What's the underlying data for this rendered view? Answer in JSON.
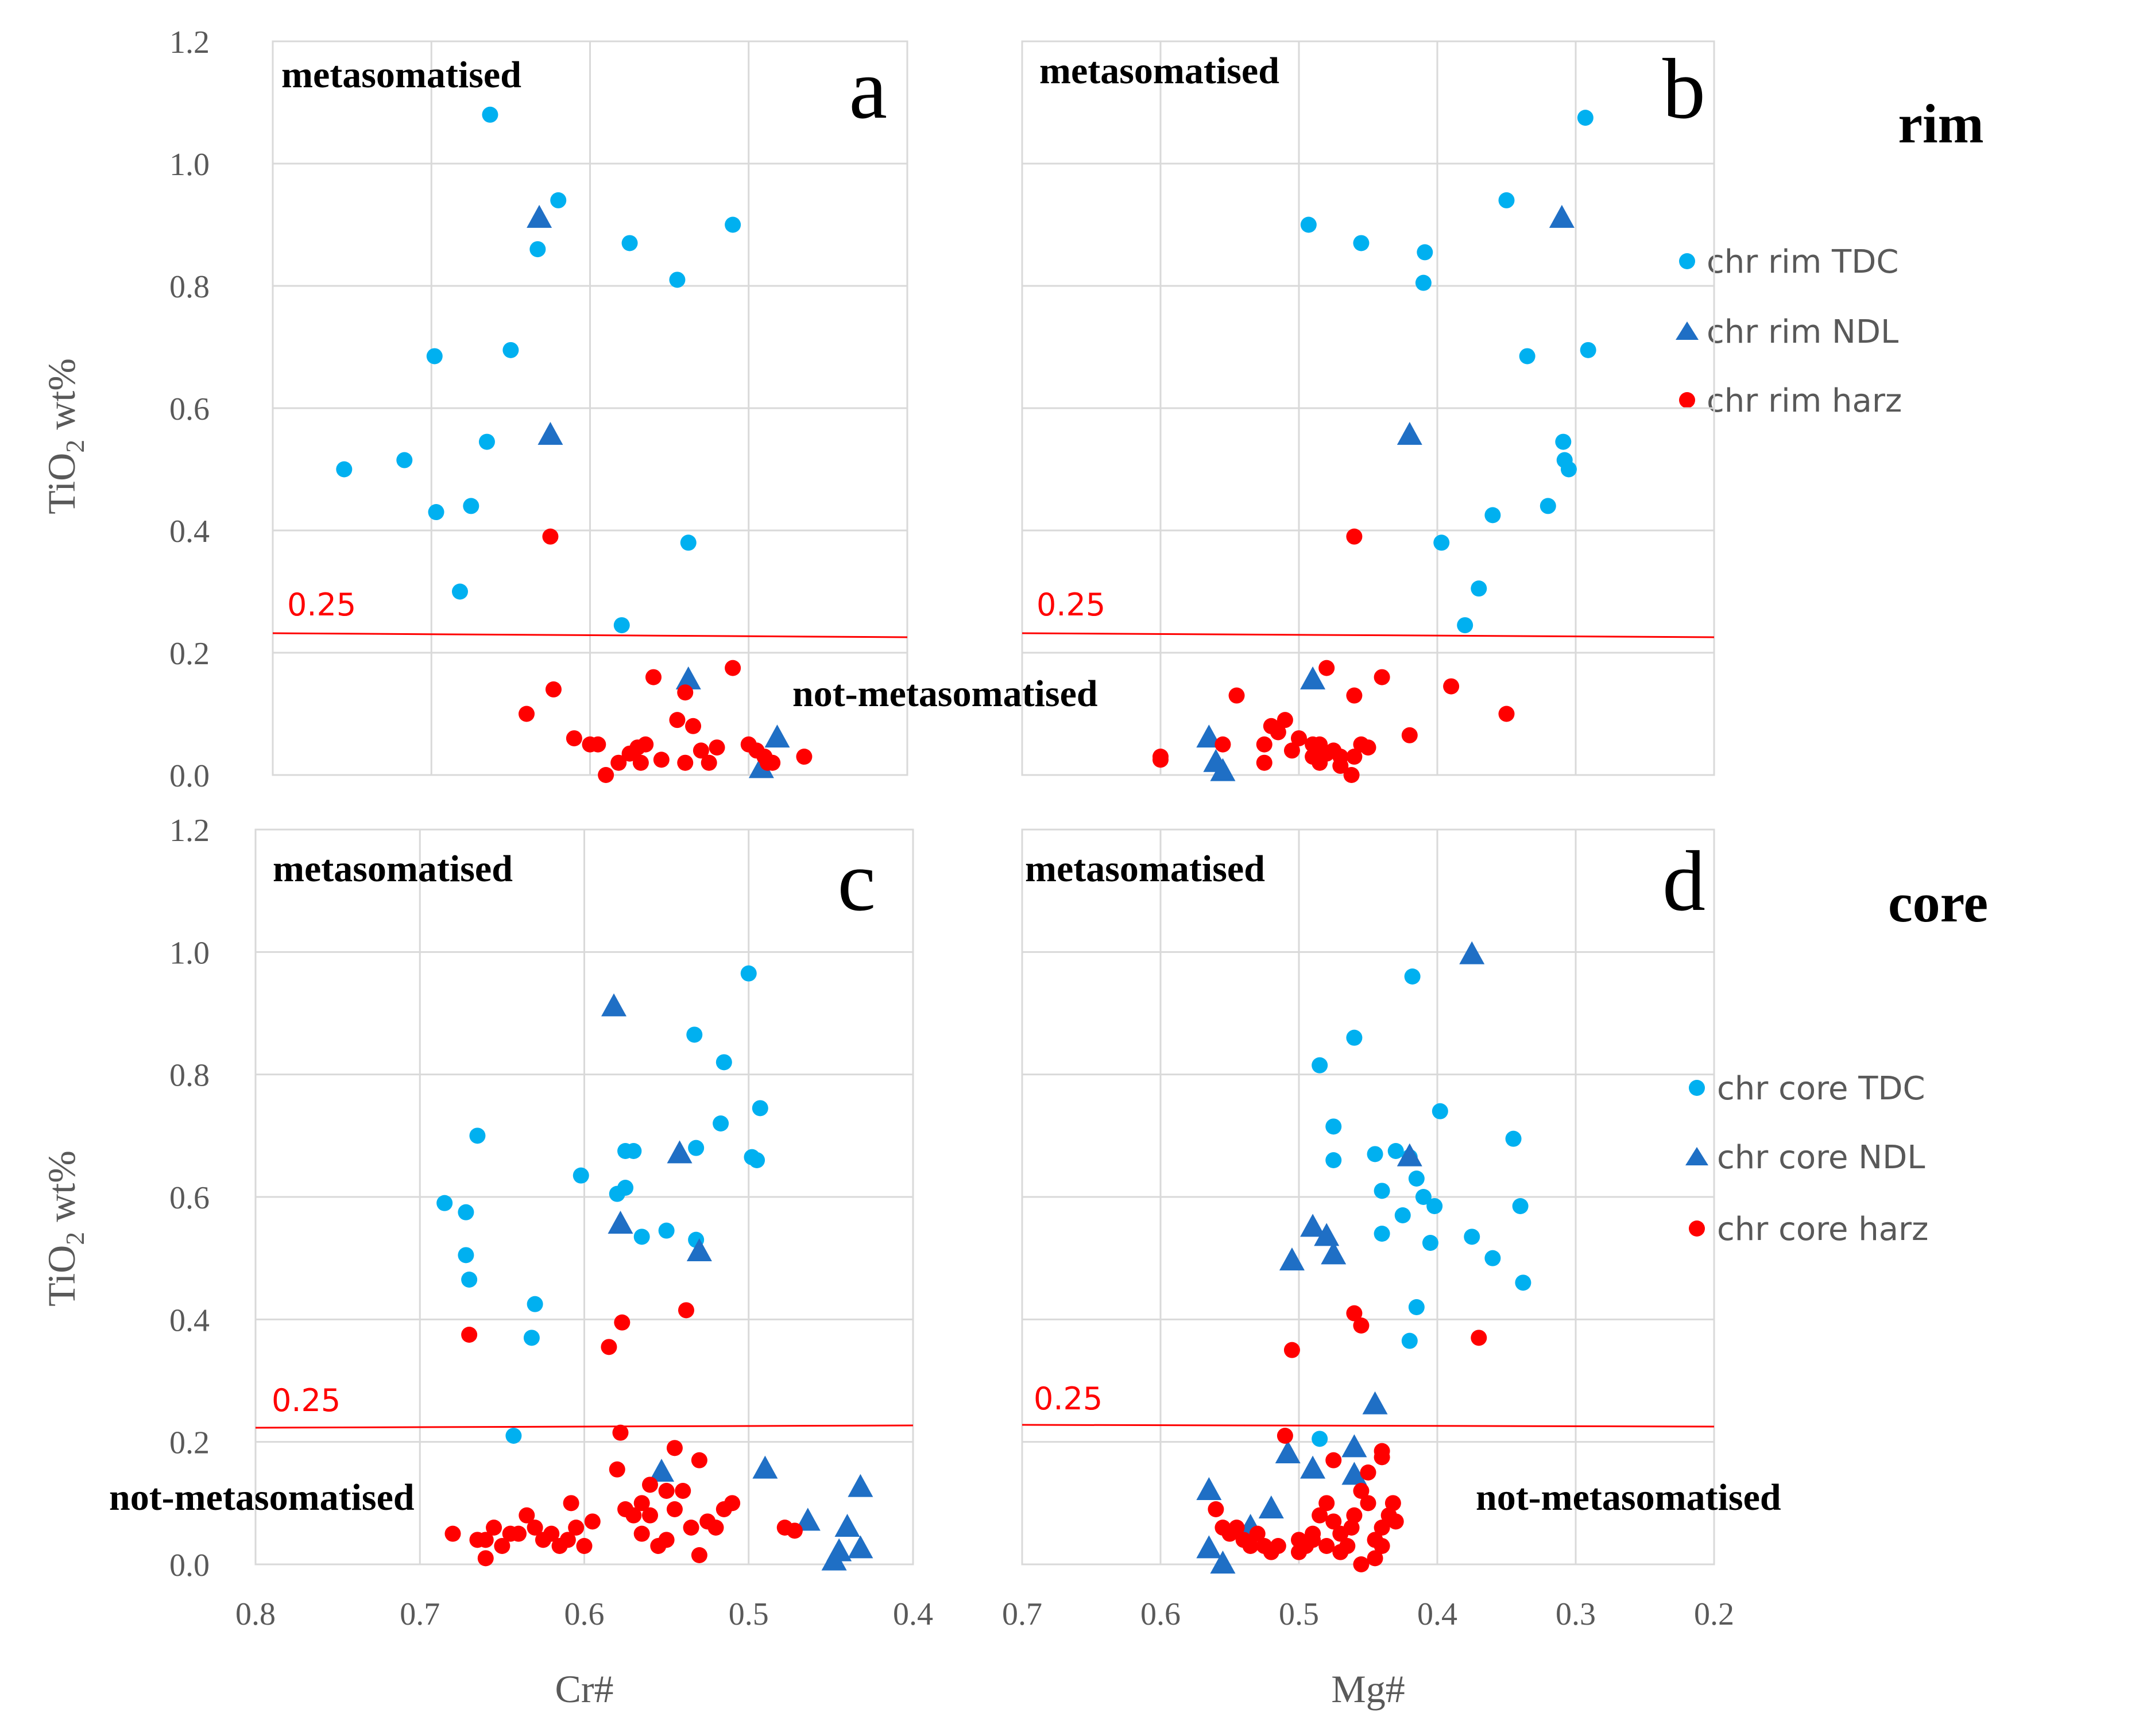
{
  "colors": {
    "TDC": "#00b0f0",
    "NDL": "#1f6fc5",
    "harz": "#ff0000",
    "threshold": "#ff0000",
    "grid": "#d9d9d9",
    "axis_text": "#595959"
  },
  "row_labels": {
    "rim": "rim",
    "core": "core"
  },
  "legends": {
    "rim": [
      {
        "label": "chr rim TDC",
        "series": "TDC",
        "marker": "circle"
      },
      {
        "label": "chr rim NDL",
        "series": "NDL",
        "marker": "triangle"
      },
      {
        "label": "chr rim harz",
        "series": "harz",
        "marker": "circle"
      }
    ],
    "core": [
      {
        "label": "chr core TDC",
        "series": "TDC",
        "marker": "circle"
      },
      {
        "label": "chr core NDL",
        "series": "NDL",
        "marker": "triangle"
      },
      {
        "label": "chr core harz",
        "series": "harz",
        "marker": "circle"
      }
    ]
  },
  "chart_data": [
    {
      "id": "a",
      "type": "scatter",
      "panel_label": "a",
      "ylabel": "TiO2 wt%",
      "xlabel": "",
      "xlim": [
        0.8,
        0.4
      ],
      "ylim": [
        0,
        1.2
      ],
      "threshold": {
        "value": 0.25,
        "label": "0.25"
      },
      "annotations": {
        "top": "metasomatised",
        "bottom": "not-metasomatised"
      },
      "series": [
        {
          "name": "chr rim TDC",
          "key": "TDC",
          "marker": "circle",
          "x": [
            0.663,
            0.62,
            0.51,
            0.575,
            0.545,
            0.698,
            0.65,
            0.665,
            0.755,
            0.717,
            0.697,
            0.675,
            0.538,
            0.682,
            0.58,
            0.633
          ],
          "y": [
            1.08,
            0.94,
            0.9,
            0.87,
            0.81,
            0.685,
            0.695,
            0.545,
            0.5,
            0.515,
            0.43,
            0.44,
            0.38,
            0.3,
            0.245,
            0.86
          ]
        },
        {
          "name": "chr rim NDL",
          "key": "NDL",
          "marker": "triangle",
          "x": [
            0.632,
            0.625,
            0.538,
            0.482,
            0.492
          ],
          "y": [
            0.91,
            0.555,
            0.155,
            0.06,
            0.01
          ]
        },
        {
          "name": "chr rim harz",
          "key": "harz",
          "marker": "circle",
          "x": [
            0.625,
            0.623,
            0.64,
            0.61,
            0.6,
            0.595,
            0.59,
            0.582,
            0.575,
            0.568,
            0.565,
            0.56,
            0.54,
            0.545,
            0.535,
            0.53,
            0.525,
            0.52,
            0.51,
            0.5,
            0.495,
            0.49,
            0.488,
            0.485,
            0.465,
            0.555,
            0.54,
            0.57
          ],
          "y": [
            0.39,
            0.14,
            0.1,
            0.06,
            0.05,
            0.05,
            0.0,
            0.02,
            0.035,
            0.02,
            0.05,
            0.16,
            0.135,
            0.09,
            0.08,
            0.04,
            0.02,
            0.045,
            0.175,
            0.05,
            0.04,
            0.03,
            0.02,
            0.02,
            0.03,
            0.025,
            0.02,
            0.045
          ]
        }
      ]
    },
    {
      "id": "b",
      "type": "scatter",
      "panel_label": "b",
      "ylabel": "",
      "xlabel": "",
      "xlim": [
        0.7,
        0.2
      ],
      "ylim": [
        0,
        1.2
      ],
      "threshold": {
        "value": 0.25,
        "label": "0.25"
      },
      "annotations": {
        "top": "metasomatised"
      },
      "series": [
        {
          "name": "chr rim TDC",
          "key": "TDC",
          "marker": "circle",
          "x": [
            0.293,
            0.35,
            0.493,
            0.455,
            0.409,
            0.41,
            0.335,
            0.291,
            0.309,
            0.308,
            0.305,
            0.36,
            0.32,
            0.397,
            0.37,
            0.38
          ],
          "y": [
            1.075,
            0.94,
            0.9,
            0.87,
            0.855,
            0.805,
            0.685,
            0.695,
            0.545,
            0.515,
            0.5,
            0.425,
            0.44,
            0.38,
            0.305,
            0.245
          ]
        },
        {
          "name": "chr rim NDL",
          "key": "NDL",
          "marker": "triangle",
          "x": [
            0.31,
            0.42,
            0.49,
            0.565,
            0.56,
            0.555
          ],
          "y": [
            0.91,
            0.555,
            0.155,
            0.06,
            0.02,
            0.005
          ]
        },
        {
          "name": "chr rim harz",
          "key": "harz",
          "marker": "circle",
          "x": [
            0.46,
            0.48,
            0.44,
            0.46,
            0.39,
            0.35,
            0.545,
            0.52,
            0.515,
            0.51,
            0.525,
            0.49,
            0.475,
            0.47,
            0.462,
            0.455,
            0.45,
            0.42,
            0.6,
            0.6,
            0.555,
            0.525,
            0.505,
            0.48,
            0.485,
            0.47,
            0.46,
            0.5,
            0.485,
            0.49
          ],
          "y": [
            0.39,
            0.175,
            0.16,
            0.13,
            0.145,
            0.1,
            0.13,
            0.08,
            0.07,
            0.09,
            0.05,
            0.05,
            0.04,
            0.03,
            0.0,
            0.05,
            0.045,
            0.065,
            0.025,
            0.03,
            0.05,
            0.02,
            0.04,
            0.035,
            0.02,
            0.015,
            0.03,
            0.06,
            0.05,
            0.03
          ]
        }
      ]
    },
    {
      "id": "c",
      "type": "scatter",
      "panel_label": "c",
      "ylabel": "TiO2 wt%",
      "xlabel": "Cr#",
      "xlim": [
        0.8,
        0.4
      ],
      "ylim": [
        0,
        1.2
      ],
      "threshold": {
        "value": 0.25,
        "label": "0.25"
      },
      "annotations": {
        "top": "metasomatised",
        "bottom": "not-metasomatised"
      },
      "series": [
        {
          "name": "chr core TDC",
          "key": "TDC",
          "marker": "circle",
          "x": [
            0.5,
            0.533,
            0.515,
            0.493,
            0.517,
            0.498,
            0.495,
            0.665,
            0.602,
            0.575,
            0.57,
            0.532,
            0.575,
            0.58,
            0.685,
            0.672,
            0.672,
            0.67,
            0.63,
            0.632,
            0.55,
            0.565,
            0.532,
            0.643
          ],
          "y": [
            0.965,
            0.865,
            0.82,
            0.745,
            0.72,
            0.665,
            0.66,
            0.7,
            0.635,
            0.675,
            0.675,
            0.68,
            0.615,
            0.605,
            0.59,
            0.575,
            0.505,
            0.465,
            0.425,
            0.37,
            0.545,
            0.535,
            0.53,
            0.21
          ]
        },
        {
          "name": "chr core NDL",
          "key": "NDL",
          "marker": "triangle",
          "x": [
            0.582,
            0.542,
            0.578,
            0.53,
            0.553,
            0.49,
            0.464,
            0.432,
            0.44,
            0.448,
            0.432,
            0.445
          ],
          "y": [
            0.91,
            0.67,
            0.555,
            0.51,
            0.15,
            0.155,
            0.07,
            0.125,
            0.06,
            0.005,
            0.025,
            0.02
          ]
        },
        {
          "name": "chr core harz",
          "key": "harz",
          "marker": "circle",
          "x": [
            0.67,
            0.577,
            0.538,
            0.585,
            0.578,
            0.58,
            0.55,
            0.545,
            0.53,
            0.565,
            0.56,
            0.575,
            0.68,
            0.665,
            0.66,
            0.655,
            0.65,
            0.645,
            0.64,
            0.635,
            0.63,
            0.625,
            0.62,
            0.615,
            0.61,
            0.605,
            0.6,
            0.595,
            0.57,
            0.565,
            0.56,
            0.555,
            0.55,
            0.545,
            0.54,
            0.535,
            0.53,
            0.525,
            0.52,
            0.515,
            0.51,
            0.478,
            0.472,
            0.66,
            0.608
          ],
          "y": [
            0.375,
            0.395,
            0.415,
            0.355,
            0.215,
            0.155,
            0.12,
            0.19,
            0.17,
            0.1,
            0.08,
            0.09,
            0.05,
            0.04,
            0.01,
            0.06,
            0.03,
            0.05,
            0.05,
            0.08,
            0.06,
            0.04,
            0.05,
            0.03,
            0.04,
            0.06,
            0.03,
            0.07,
            0.08,
            0.05,
            0.13,
            0.03,
            0.04,
            0.09,
            0.12,
            0.06,
            0.015,
            0.07,
            0.06,
            0.09,
            0.1,
            0.06,
            0.055,
            0.04,
            0.1
          ]
        }
      ]
    },
    {
      "id": "d",
      "type": "scatter",
      "panel_label": "d",
      "ylabel": "",
      "xlabel": "Mg#",
      "xlim": [
        0.7,
        0.2
      ],
      "ylim": [
        0,
        1.2
      ],
      "threshold": {
        "value": 0.25,
        "label": "0.25"
      },
      "annotations": {
        "top": "metasomatised",
        "bottom": "not-metasomatised"
      },
      "series": [
        {
          "name": "chr core TDC",
          "key": "TDC",
          "marker": "circle",
          "x": [
            0.418,
            0.46,
            0.485,
            0.398,
            0.475,
            0.345,
            0.475,
            0.445,
            0.43,
            0.42,
            0.415,
            0.44,
            0.41,
            0.402,
            0.36,
            0.34,
            0.425,
            0.375,
            0.44,
            0.405,
            0.415,
            0.338,
            0.42,
            0.485
          ],
          "y": [
            0.96,
            0.86,
            0.815,
            0.74,
            0.715,
            0.695,
            0.66,
            0.67,
            0.675,
            0.665,
            0.63,
            0.61,
            0.6,
            0.585,
            0.5,
            0.585,
            0.57,
            0.535,
            0.54,
            0.525,
            0.42,
            0.46,
            0.365,
            0.205
          ]
        },
        {
          "name": "chr core NDL",
          "key": "NDL",
          "marker": "triangle",
          "x": [
            0.375,
            0.42,
            0.49,
            0.48,
            0.505,
            0.475,
            0.445,
            0.508,
            0.49,
            0.46,
            0.46,
            0.565,
            0.565,
            0.555,
            0.52,
            0.535
          ],
          "y": [
            0.995,
            0.665,
            0.55,
            0.535,
            0.495,
            0.505,
            0.26,
            0.18,
            0.155,
            0.19,
            0.145,
            0.12,
            0.025,
            0.0,
            0.09,
            0.06
          ]
        },
        {
          "name": "chr core harz",
          "key": "harz",
          "marker": "circle",
          "x": [
            0.46,
            0.455,
            0.505,
            0.37,
            0.51,
            0.475,
            0.45,
            0.44,
            0.44,
            0.56,
            0.555,
            0.55,
            0.545,
            0.54,
            0.535,
            0.53,
            0.525,
            0.52,
            0.515,
            0.5,
            0.495,
            0.49,
            0.485,
            0.48,
            0.475,
            0.47,
            0.465,
            0.46,
            0.455,
            0.45,
            0.445,
            0.44,
            0.435,
            0.432,
            0.43,
            0.5,
            0.49,
            0.48,
            0.47,
            0.462,
            0.455,
            0.445,
            0.44
          ],
          "y": [
            0.41,
            0.39,
            0.35,
            0.37,
            0.21,
            0.17,
            0.15,
            0.185,
            0.175,
            0.09,
            0.06,
            0.05,
            0.06,
            0.04,
            0.03,
            0.05,
            0.03,
            0.02,
            0.03,
            0.02,
            0.03,
            0.04,
            0.08,
            0.1,
            0.07,
            0.05,
            0.03,
            0.08,
            0.12,
            0.1,
            0.04,
            0.06,
            0.08,
            0.1,
            0.07,
            0.04,
            0.05,
            0.03,
            0.02,
            0.06,
            0.0,
            0.01,
            0.03
          ]
        }
      ]
    }
  ]
}
